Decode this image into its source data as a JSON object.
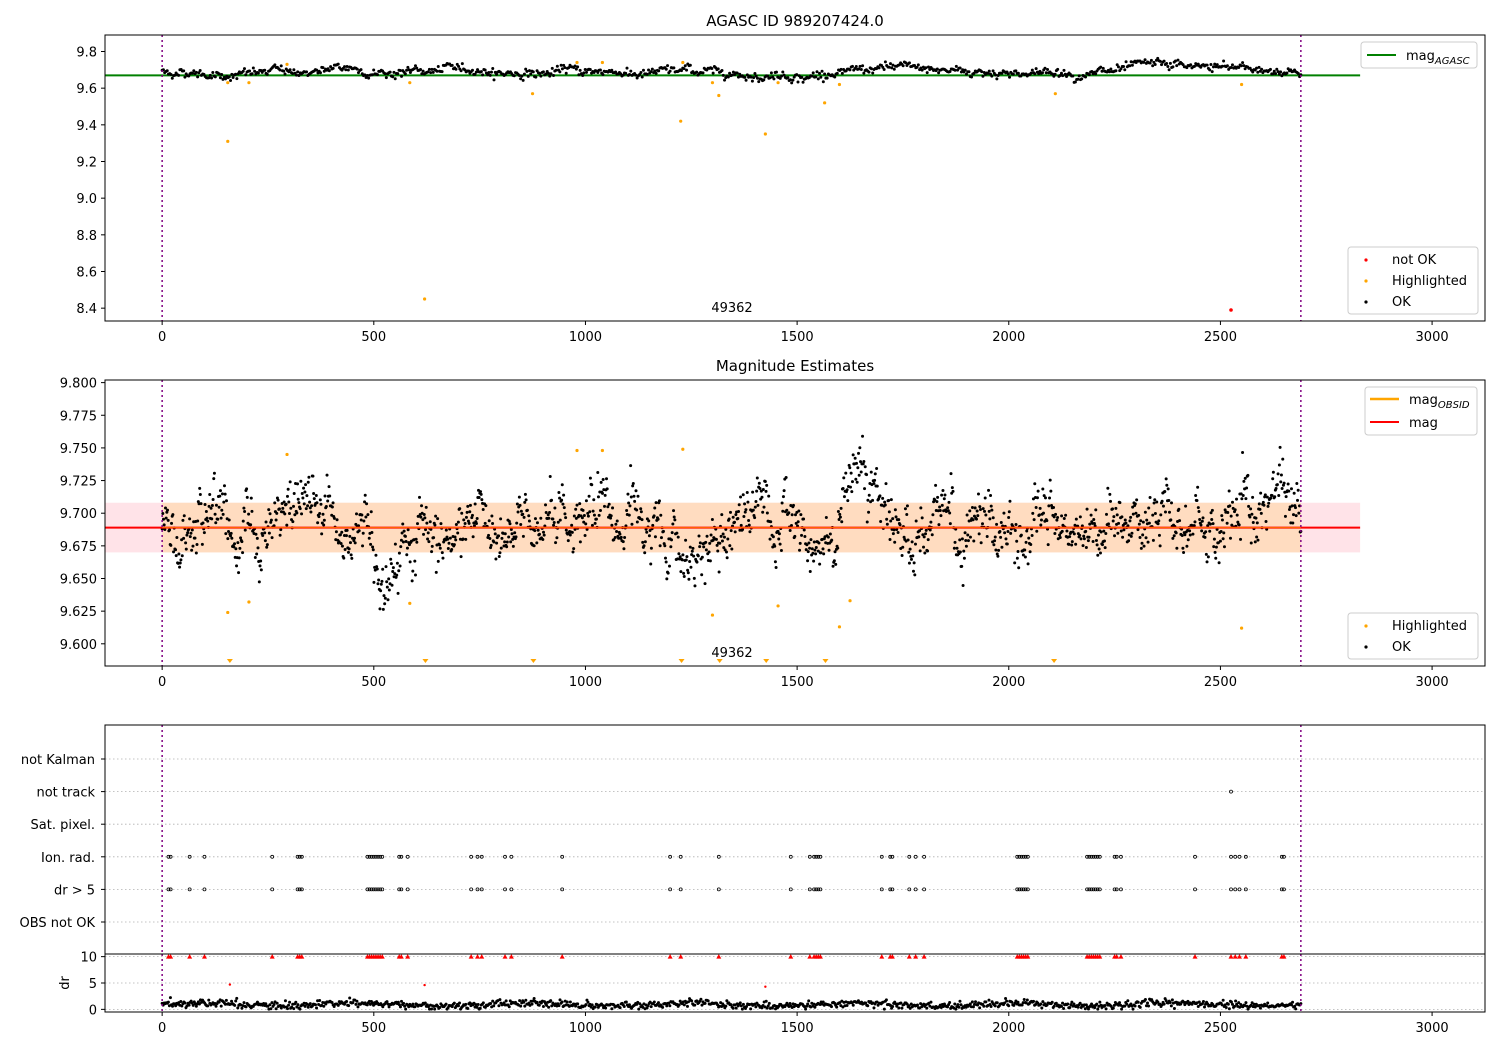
{
  "colors": {
    "ok": "#000000",
    "highlighted": "#FFA500",
    "not_ok": "#FF0000",
    "mag_agasc": "#008000",
    "mag_obsid": "#FFA500",
    "mag": "#FF0000",
    "band_outer": "#FFC0CB",
    "band_inner": "#FFDAB9",
    "vline": "#800080"
  },
  "chart_data": [
    {
      "type": "scatter",
      "title": "AGASC ID 989207424.0",
      "xlim": [
        -135,
        3125
      ],
      "ylim": [
        8.33,
        9.89
      ],
      "xticks": [
        "0",
        "500",
        "1000",
        "1500",
        "2000",
        "2500",
        "3000"
      ],
      "yticks": [
        "8.4",
        "8.6",
        "8.8",
        "9.0",
        "9.2",
        "9.4",
        "9.6",
        "9.8"
      ],
      "vlines_x": [
        0,
        2690
      ],
      "annotation": {
        "text": "49362",
        "x": 1345,
        "y": 8.37
      },
      "hlines": [
        {
          "name": "mag_{AGASC}",
          "y": 9.67
        }
      ],
      "legend_lines": [
        "mag",
        "AGASC"
      ],
      "legend_points": [
        "not OK",
        "Highlighted",
        "OK"
      ],
      "ok_series": {
        "x_range": [
          0,
          2690
        ],
        "mean": 9.69,
        "spread": 0.02
      },
      "highlighted_points": [
        [
          155,
          9.31
        ],
        [
          155,
          9.63
        ],
        [
          205,
          9.63
        ],
        [
          295,
          9.73
        ],
        [
          620,
          8.45
        ],
        [
          585,
          9.63
        ],
        [
          875,
          9.57
        ],
        [
          980,
          9.74
        ],
        [
          1040,
          9.74
        ],
        [
          1225,
          9.42
        ],
        [
          1230,
          9.74
        ],
        [
          1300,
          9.63
        ],
        [
          1315,
          9.56
        ],
        [
          1425,
          9.35
        ],
        [
          1455,
          9.63
        ],
        [
          1565,
          9.52
        ],
        [
          1600,
          9.62
        ],
        [
          2110,
          9.57
        ],
        [
          2550,
          9.62
        ]
      ],
      "not_ok_points": [
        [
          2525,
          8.39
        ]
      ]
    },
    {
      "type": "scatter",
      "title": "Magnitude Estimates",
      "xlim": [
        -135,
        3125
      ],
      "ylim": [
        9.583,
        9.802
      ],
      "xticks": [
        "0",
        "500",
        "1000",
        "1500",
        "2000",
        "2500",
        "3000"
      ],
      "yticks": [
        "9.600",
        "9.625",
        "9.650",
        "9.675",
        "9.700",
        "9.725",
        "9.750",
        "9.775",
        "9.800"
      ],
      "vlines_x": [
        0,
        2690
      ],
      "annotation": {
        "text": "49362",
        "x": 1345,
        "y": 9.587
      },
      "mag": 9.689,
      "band_outer": [
        9.67,
        9.708
      ],
      "band_inner": [
        9.67,
        9.708
      ],
      "band_x": [
        -135,
        2830
      ],
      "legend_lines": [
        "mag",
        "OBSID",
        "mag"
      ],
      "legend_points": [
        "Highlighted",
        "OK"
      ],
      "ok_series": {
        "x_range": [
          0,
          2690
        ],
        "mean": 9.689,
        "spread": 0.016
      },
      "highlighted_points": [
        [
          155,
          9.624
        ],
        [
          205,
          9.632
        ],
        [
          295,
          9.745
        ],
        [
          585,
          9.631
        ],
        [
          980,
          9.748
        ],
        [
          1040,
          9.748
        ],
        [
          1230,
          9.749
        ],
        [
          1300,
          9.622
        ],
        [
          1455,
          9.629
        ],
        [
          1600,
          9.613
        ],
        [
          1625,
          9.633
        ],
        [
          2550,
          9.612
        ]
      ],
      "offscale_markers_x": [
        160,
        622,
        877,
        1227,
        1317,
        1427,
        1567,
        2107
      ]
    },
    {
      "type": "scatter",
      "title": "",
      "xlim": [
        -135,
        3125
      ],
      "categories": [
        "not Kalman",
        "not track",
        "Sat. pixel.",
        "Ion. rad.",
        "dr > 5",
        "OBS not OK"
      ],
      "vlines_x": [
        0,
        2690
      ],
      "flag_points": {
        "not track": [
          2525
        ],
        "Ion. rad.": [
          15,
          20,
          65,
          100,
          260,
          320,
          325,
          330,
          485,
          490,
          495,
          500,
          505,
          510,
          515,
          520,
          560,
          565,
          580,
          730,
          745,
          755,
          810,
          825,
          945,
          1200,
          1225,
          1315,
          1485,
          1530,
          1540,
          1545,
          1550,
          1555,
          1700,
          1720,
          1725,
          1765,
          1780,
          1800,
          2020,
          2025,
          2030,
          2035,
          2040,
          2045,
          2185,
          2190,
          2195,
          2200,
          2205,
          2210,
          2215,
          2250,
          2255,
          2265,
          2440,
          2525,
          2535,
          2545,
          2560,
          2645,
          2650
        ],
        "dr > 5": [
          15,
          20,
          65,
          100,
          260,
          320,
          325,
          330,
          485,
          490,
          495,
          500,
          505,
          510,
          515,
          520,
          560,
          565,
          580,
          730,
          745,
          755,
          810,
          825,
          945,
          1200,
          1225,
          1315,
          1485,
          1530,
          1540,
          1545,
          1550,
          1555,
          1700,
          1720,
          1725,
          1765,
          1780,
          1800,
          2020,
          2025,
          2030,
          2035,
          2040,
          2045,
          2185,
          2190,
          2195,
          2200,
          2205,
          2210,
          2215,
          2250,
          2255,
          2265,
          2440,
          2525,
          2535,
          2545,
          2560,
          2645,
          2650
        ]
      }
    },
    {
      "type": "scatter",
      "ylabel": "dr",
      "xlim": [
        -135,
        3125
      ],
      "ylim": [
        -0.5,
        10.5
      ],
      "xticks": [
        "0",
        "500",
        "1000",
        "1500",
        "2000",
        "2500",
        "3000"
      ],
      "yticks": [
        "0",
        "5",
        "10"
      ],
      "vlines_x": [
        0,
        2690
      ],
      "ok_series": {
        "x_range": [
          0,
          2690
        ],
        "mean": 0.9,
        "spread": 0.35
      },
      "red_markers_at_10_x": [
        15,
        20,
        65,
        100,
        260,
        320,
        325,
        330,
        485,
        490,
        495,
        500,
        505,
        510,
        515,
        520,
        560,
        565,
        580,
        730,
        745,
        755,
        810,
        825,
        945,
        1200,
        1225,
        1315,
        1485,
        1530,
        1540,
        1545,
        1550,
        1555,
        1700,
        1720,
        1725,
        1765,
        1780,
        1800,
        2020,
        2025,
        2030,
        2035,
        2040,
        2045,
        2185,
        2190,
        2195,
        2200,
        2205,
        2210,
        2215,
        2250,
        2255,
        2265,
        2440,
        2525,
        2535,
        2545,
        2560,
        2645,
        2650
      ],
      "red_points": [
        [
          160,
          4.7
        ],
        [
          620,
          4.6
        ],
        [
          1425,
          4.3
        ]
      ]
    }
  ]
}
